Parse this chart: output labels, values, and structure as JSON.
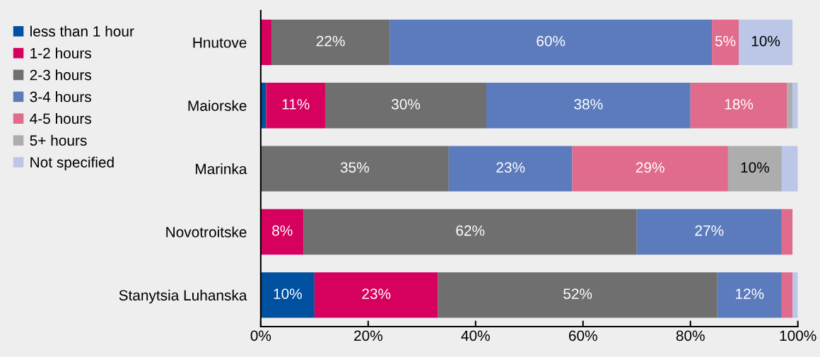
{
  "chart_data": {
    "type": "bar",
    "orientation": "horizontal",
    "stacked": true,
    "categories": [
      "Hnutove",
      "Maiorske",
      "Marinka",
      "Novotroitske",
      "Stanytsia Luhanska"
    ],
    "series": [
      {
        "name": "less than 1 hour",
        "color": "#0050a0",
        "values": [
          0,
          1,
          0,
          0,
          10
        ],
        "value_labels": [
          null,
          null,
          null,
          null,
          "10%"
        ]
      },
      {
        "name": "1-2 hours",
        "color": "#d6005f",
        "values": [
          2,
          11,
          0,
          8,
          23
        ],
        "value_labels": [
          null,
          "11%",
          null,
          "8%",
          "23%"
        ]
      },
      {
        "name": "2-3 hours",
        "color": "#6f6f6f",
        "values": [
          22,
          30,
          35,
          62,
          52
        ],
        "value_labels": [
          "22%",
          "30%",
          "35%",
          "62%",
          "52%"
        ]
      },
      {
        "name": "3-4 hours",
        "color": "#5b7bbd",
        "values": [
          60,
          38,
          23,
          27,
          12
        ],
        "value_labels": [
          "60%",
          "38%",
          "23%",
          "27%",
          "12%"
        ]
      },
      {
        "name": "4-5 hours",
        "color": "#e06b8c",
        "values": [
          5,
          18,
          29,
          2,
          2
        ],
        "value_labels": [
          "5%",
          "18%",
          "29%",
          null,
          null
        ]
      },
      {
        "name": "5+ hours",
        "color": "#adadad",
        "values": [
          0,
          1,
          10,
          0,
          0
        ],
        "value_labels": [
          null,
          null,
          "10%",
          null,
          null
        ]
      },
      {
        "name": "Not specified",
        "color": "#bcc6e6",
        "values": [
          10,
          1,
          3,
          0,
          1
        ],
        "value_labels": [
          "10%",
          null,
          null,
          null,
          null
        ]
      }
    ],
    "xlim": [
      0,
      100
    ],
    "xticks": [
      {
        "value": 0,
        "label": "0%"
      },
      {
        "value": 20,
        "label": "20%"
      },
      {
        "value": 40,
        "label": "40%"
      },
      {
        "value": 60,
        "label": "60%"
      },
      {
        "value": 80,
        "label": "80%"
      },
      {
        "value": 100,
        "label": "100%"
      }
    ],
    "legend": "left",
    "grid": false
  }
}
